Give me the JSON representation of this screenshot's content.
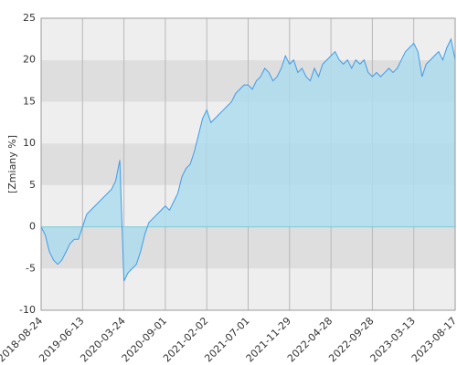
{
  "chart_data": {
    "type": "area",
    "y_label": "[Zmiany %]",
    "categories": [
      "2018-08-24",
      null,
      null,
      null,
      null,
      null,
      null,
      null,
      null,
      null,
      "2019-06-13",
      null,
      null,
      null,
      null,
      null,
      null,
      null,
      null,
      null,
      "2020-03-24",
      null,
      null,
      null,
      null,
      null,
      null,
      null,
      null,
      null,
      "2020-09-01",
      null,
      null,
      null,
      null,
      null,
      null,
      null,
      null,
      null,
      "2021-02-02",
      null,
      null,
      null,
      null,
      null,
      null,
      null,
      null,
      null,
      "2021-07-01",
      null,
      null,
      null,
      null,
      null,
      null,
      null,
      null,
      null,
      "2021-11-29",
      null,
      null,
      null,
      null,
      null,
      null,
      null,
      null,
      null,
      "2022-04-28",
      null,
      null,
      null,
      null,
      null,
      null,
      null,
      null,
      null,
      "2022-09-28",
      null,
      null,
      null,
      null,
      null,
      null,
      null,
      null,
      null,
      "2023-03-13",
      null,
      null,
      null,
      null,
      null,
      null,
      null,
      null,
      null,
      "2023-08-17"
    ],
    "values": [
      0,
      -1,
      -3,
      -4,
      -4.5,
      -4,
      -3,
      -2,
      -1.5,
      -1.5,
      0,
      1.5,
      2,
      2.5,
      3,
      3.5,
      4,
      4.5,
      5.5,
      8,
      -6.5,
      -5.5,
      -5,
      -4.5,
      -3,
      -1,
      0.5,
      1,
      1.5,
      2,
      2.5,
      2,
      3,
      4,
      6,
      7,
      7.5,
      9,
      11,
      13,
      14,
      12.5,
      13,
      13.5,
      14,
      14.5,
      15,
      16,
      16.5,
      17,
      17,
      16.5,
      17.5,
      18,
      19,
      18.5,
      17.5,
      18,
      19,
      20.5,
      19.5,
      20,
      18.5,
      19,
      18,
      17.5,
      19,
      18,
      19.5,
      20,
      20.5,
      21,
      20,
      19.5,
      20,
      19,
      20,
      19.5,
      20,
      18.5,
      18,
      18.5,
      18,
      18.5,
      19,
      18.5,
      19,
      20,
      21,
      21.5,
      22,
      21,
      18,
      19.5,
      20,
      20.5,
      21,
      20,
      21.5,
      22.5,
      20
    ],
    "color": "#3f9be8",
    "fill": "#aedcec",
    "ylim": [
      -10,
      25
    ],
    "yticks": [
      -10,
      -5,
      0,
      5,
      10,
      15,
      20,
      25
    ],
    "grid": true
  }
}
